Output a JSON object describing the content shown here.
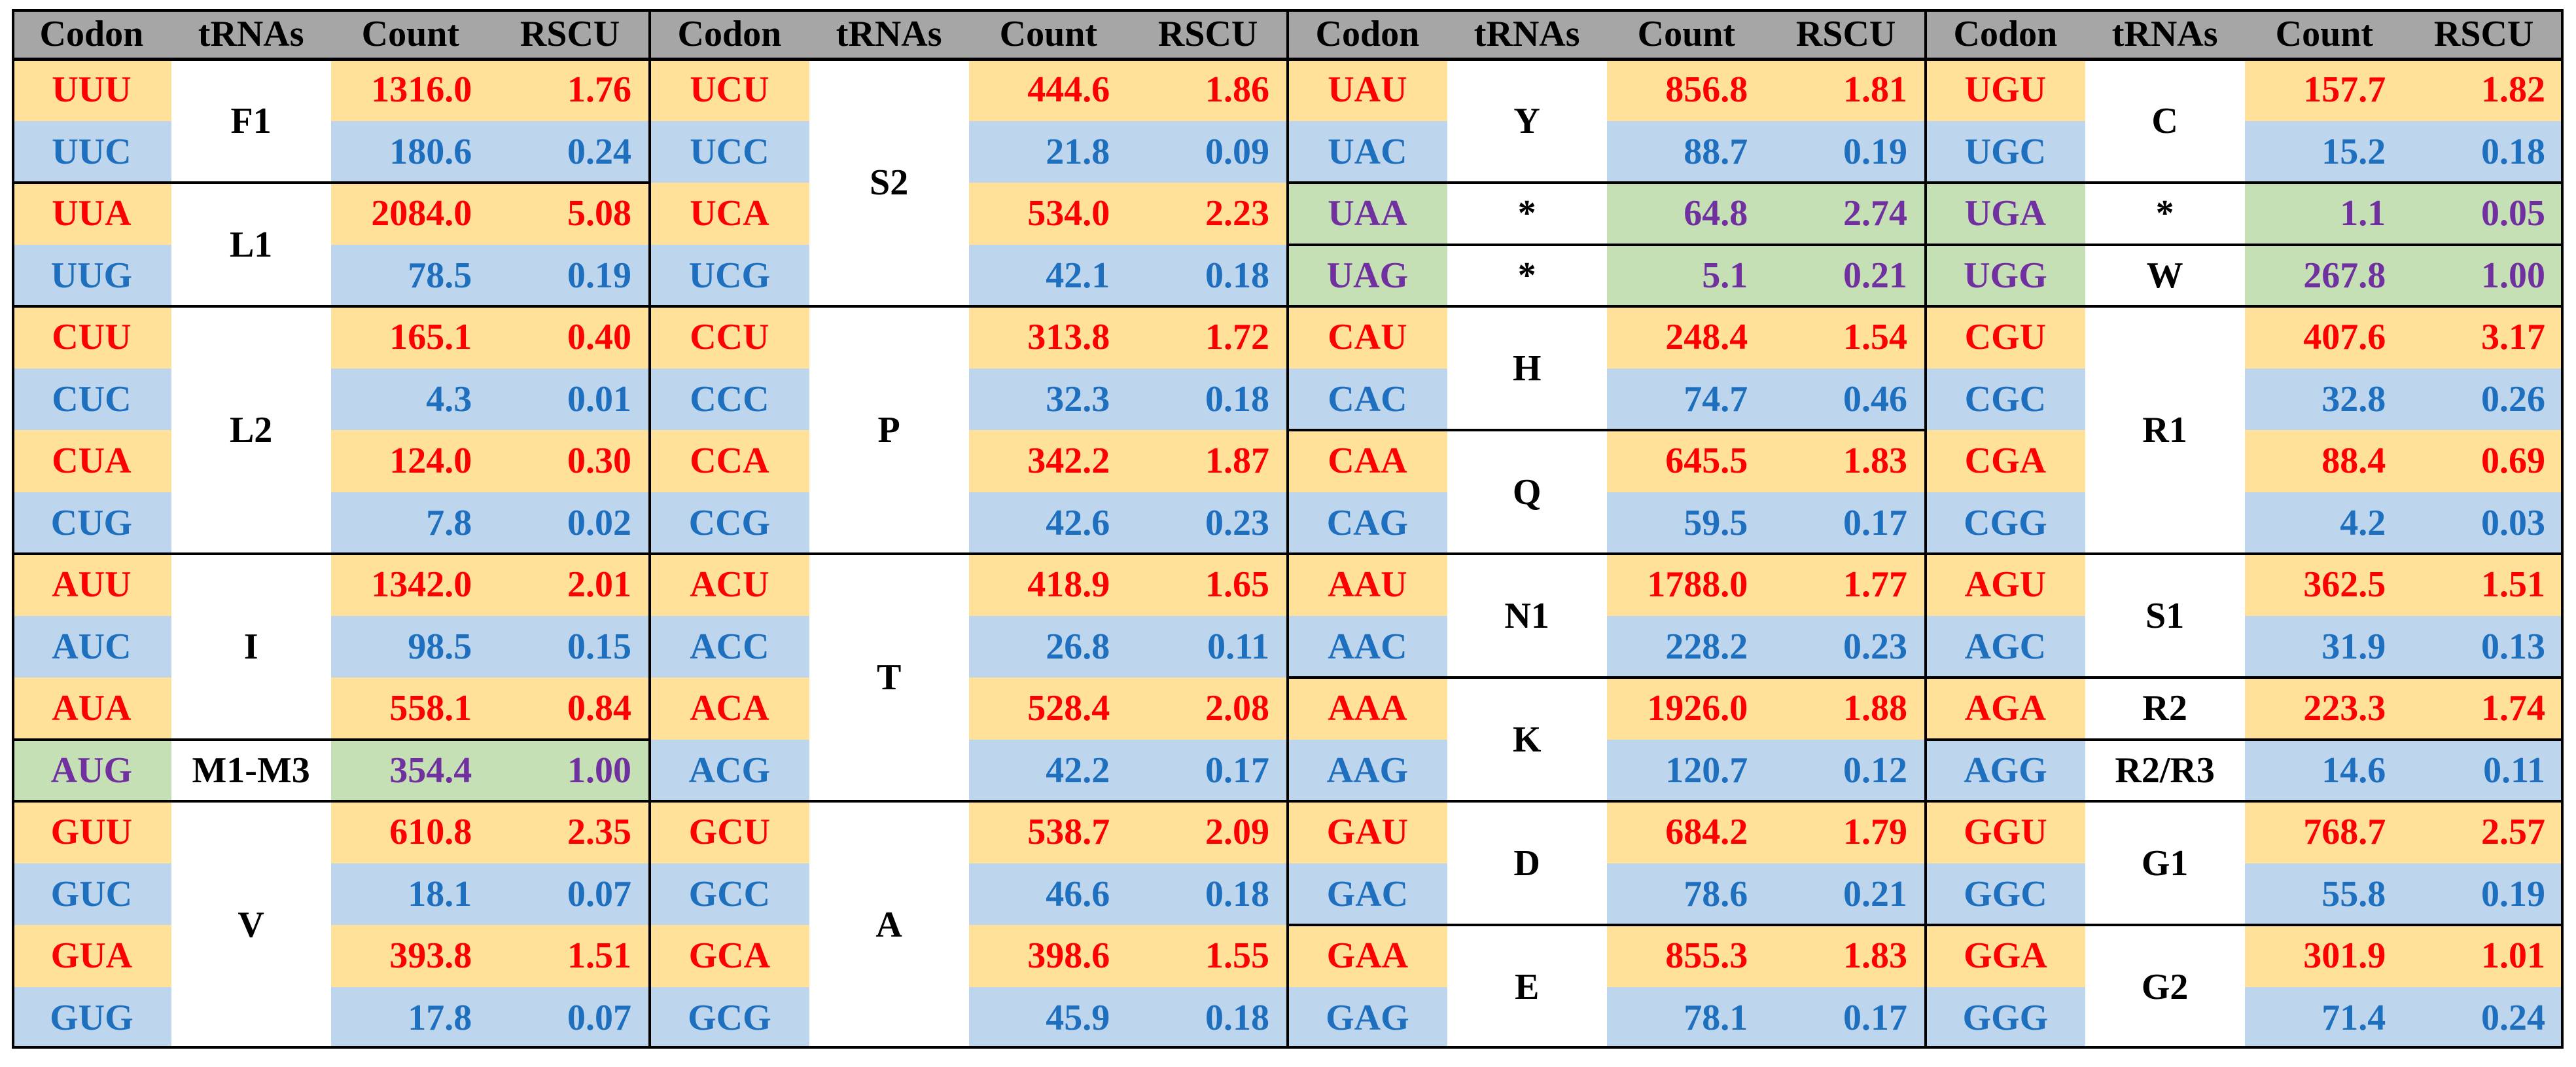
{
  "colors": {
    "header_bg": "#a6a6a6",
    "u_ending_bg": "#ffe199",
    "c_ending_bg": "#bdd6ee",
    "special_bg": "#c5e0b4",
    "u_ending_text": "#ff0000",
    "c_ending_text": "#1f6fbf",
    "special_text": "#7030a0",
    "trna_text": "#000000",
    "line": "#000000"
  },
  "headers": [
    "Codon",
    "tRNAs",
    "Count",
    "RSCU"
  ],
  "blocks": [
    {
      "rows": [
        {
          "codon": "UUU",
          "count": "1316.0",
          "rscu": "1.76",
          "kind": "u"
        },
        {
          "codon": "UUC",
          "count": "180.6",
          "rscu": "0.24",
          "kind": "c"
        },
        {
          "codon": "UUA",
          "count": "2084.0",
          "rscu": "5.08",
          "kind": "u"
        },
        {
          "codon": "UUG",
          "count": "78.5",
          "rscu": "0.19",
          "kind": "c"
        },
        {
          "codon": "CUU",
          "count": "165.1",
          "rscu": "0.40",
          "kind": "u"
        },
        {
          "codon": "CUC",
          "count": "4.3",
          "rscu": "0.01",
          "kind": "c"
        },
        {
          "codon": "CUA",
          "count": "124.0",
          "rscu": "0.30",
          "kind": "u"
        },
        {
          "codon": "CUG",
          "count": "7.8",
          "rscu": "0.02",
          "kind": "c"
        },
        {
          "codon": "AUU",
          "count": "1342.0",
          "rscu": "2.01",
          "kind": "u"
        },
        {
          "codon": "AUC",
          "count": "98.5",
          "rscu": "0.15",
          "kind": "c"
        },
        {
          "codon": "AUA",
          "count": "558.1",
          "rscu": "0.84",
          "kind": "u"
        },
        {
          "codon": "AUG",
          "count": "354.4",
          "rscu": "1.00",
          "kind": "s"
        },
        {
          "codon": "GUU",
          "count": "610.8",
          "rscu": "2.35",
          "kind": "u"
        },
        {
          "codon": "GUC",
          "count": "18.1",
          "rscu": "0.07",
          "kind": "c"
        },
        {
          "codon": "GUA",
          "count": "393.8",
          "rscu": "1.51",
          "kind": "u"
        },
        {
          "codon": "GUG",
          "count": "17.8",
          "rscu": "0.07",
          "kind": "c"
        }
      ],
      "trnas": [
        {
          "label": "F1",
          "start": 0,
          "span": 2
        },
        {
          "label": "L1",
          "start": 2,
          "span": 2
        },
        {
          "label": "L2",
          "start": 4,
          "span": 4
        },
        {
          "label": "I",
          "start": 8,
          "span": 3
        },
        {
          "label": "M1-M3",
          "start": 11,
          "span": 1
        },
        {
          "label": "V",
          "start": 12,
          "span": 4
        }
      ]
    },
    {
      "rows": [
        {
          "codon": "UCU",
          "count": "444.6",
          "rscu": "1.86",
          "kind": "u"
        },
        {
          "codon": "UCC",
          "count": "21.8",
          "rscu": "0.09",
          "kind": "c"
        },
        {
          "codon": "UCA",
          "count": "534.0",
          "rscu": "2.23",
          "kind": "u"
        },
        {
          "codon": "UCG",
          "count": "42.1",
          "rscu": "0.18",
          "kind": "c"
        },
        {
          "codon": "CCU",
          "count": "313.8",
          "rscu": "1.72",
          "kind": "u"
        },
        {
          "codon": "CCC",
          "count": "32.3",
          "rscu": "0.18",
          "kind": "c"
        },
        {
          "codon": "CCA",
          "count": "342.2",
          "rscu": "1.87",
          "kind": "u"
        },
        {
          "codon": "CCG",
          "count": "42.6",
          "rscu": "0.23",
          "kind": "c"
        },
        {
          "codon": "ACU",
          "count": "418.9",
          "rscu": "1.65",
          "kind": "u"
        },
        {
          "codon": "ACC",
          "count": "26.8",
          "rscu": "0.11",
          "kind": "c"
        },
        {
          "codon": "ACA",
          "count": "528.4",
          "rscu": "2.08",
          "kind": "u"
        },
        {
          "codon": "ACG",
          "count": "42.2",
          "rscu": "0.17",
          "kind": "c"
        },
        {
          "codon": "GCU",
          "count": "538.7",
          "rscu": "2.09",
          "kind": "u"
        },
        {
          "codon": "GCC",
          "count": "46.6",
          "rscu": "0.18",
          "kind": "c"
        },
        {
          "codon": "GCA",
          "count": "398.6",
          "rscu": "1.55",
          "kind": "u"
        },
        {
          "codon": "GCG",
          "count": "45.9",
          "rscu": "0.18",
          "kind": "c"
        }
      ],
      "trnas": [
        {
          "label": "S2",
          "start": 0,
          "span": 4
        },
        {
          "label": "P",
          "start": 4,
          "span": 4
        },
        {
          "label": "T",
          "start": 8,
          "span": 4
        },
        {
          "label": "A",
          "start": 12,
          "span": 4
        }
      ]
    },
    {
      "rows": [
        {
          "codon": "UAU",
          "count": "856.8",
          "rscu": "1.81",
          "kind": "u"
        },
        {
          "codon": "UAC",
          "count": "88.7",
          "rscu": "0.19",
          "kind": "c"
        },
        {
          "codon": "UAA",
          "count": "64.8",
          "rscu": "2.74",
          "kind": "s"
        },
        {
          "codon": "UAG",
          "count": "5.1",
          "rscu": "0.21",
          "kind": "s"
        },
        {
          "codon": "CAU",
          "count": "248.4",
          "rscu": "1.54",
          "kind": "u"
        },
        {
          "codon": "CAC",
          "count": "74.7",
          "rscu": "0.46",
          "kind": "c"
        },
        {
          "codon": "CAA",
          "count": "645.5",
          "rscu": "1.83",
          "kind": "u"
        },
        {
          "codon": "CAG",
          "count": "59.5",
          "rscu": "0.17",
          "kind": "c"
        },
        {
          "codon": "AAU",
          "count": "1788.0",
          "rscu": "1.77",
          "kind": "u"
        },
        {
          "codon": "AAC",
          "count": "228.2",
          "rscu": "0.23",
          "kind": "c"
        },
        {
          "codon": "AAA",
          "count": "1926.0",
          "rscu": "1.88",
          "kind": "u"
        },
        {
          "codon": "AAG",
          "count": "120.7",
          "rscu": "0.12",
          "kind": "c"
        },
        {
          "codon": "GAU",
          "count": "684.2",
          "rscu": "1.79",
          "kind": "u"
        },
        {
          "codon": "GAC",
          "count": "78.6",
          "rscu": "0.21",
          "kind": "c"
        },
        {
          "codon": "GAA",
          "count": "855.3",
          "rscu": "1.83",
          "kind": "u"
        },
        {
          "codon": "GAG",
          "count": "78.1",
          "rscu": "0.17",
          "kind": "c"
        }
      ],
      "trnas": [
        {
          "label": "Y",
          "start": 0,
          "span": 2
        },
        {
          "label": "*",
          "start": 2,
          "span": 1
        },
        {
          "label": "*",
          "start": 3,
          "span": 1
        },
        {
          "label": "H",
          "start": 4,
          "span": 2
        },
        {
          "label": "Q",
          "start": 6,
          "span": 2
        },
        {
          "label": "N1",
          "start": 8,
          "span": 2
        },
        {
          "label": "K",
          "start": 10,
          "span": 2
        },
        {
          "label": "D",
          "start": 12,
          "span": 2
        },
        {
          "label": "E",
          "start": 14,
          "span": 2
        }
      ]
    },
    {
      "rows": [
        {
          "codon": "UGU",
          "count": "157.7",
          "rscu": "1.82",
          "kind": "u"
        },
        {
          "codon": "UGC",
          "count": "15.2",
          "rscu": "0.18",
          "kind": "c"
        },
        {
          "codon": "UGA",
          "count": "1.1",
          "rscu": "0.05",
          "kind": "s"
        },
        {
          "codon": "UGG",
          "count": "267.8",
          "rscu": "1.00",
          "kind": "s"
        },
        {
          "codon": "CGU",
          "count": "407.6",
          "rscu": "3.17",
          "kind": "u"
        },
        {
          "codon": "CGC",
          "count": "32.8",
          "rscu": "0.26",
          "kind": "c"
        },
        {
          "codon": "CGA",
          "count": "88.4",
          "rscu": "0.69",
          "kind": "u"
        },
        {
          "codon": "CGG",
          "count": "4.2",
          "rscu": "0.03",
          "kind": "c"
        },
        {
          "codon": "AGU",
          "count": "362.5",
          "rscu": "1.51",
          "kind": "u"
        },
        {
          "codon": "AGC",
          "count": "31.9",
          "rscu": "0.13",
          "kind": "c"
        },
        {
          "codon": "AGA",
          "count": "223.3",
          "rscu": "1.74",
          "kind": "u"
        },
        {
          "codon": "AGG",
          "count": "14.6",
          "rscu": "0.11",
          "kind": "c"
        },
        {
          "codon": "GGU",
          "count": "768.7",
          "rscu": "2.57",
          "kind": "u"
        },
        {
          "codon": "GGC",
          "count": "55.8",
          "rscu": "0.19",
          "kind": "c"
        },
        {
          "codon": "GGA",
          "count": "301.9",
          "rscu": "1.01",
          "kind": "u"
        },
        {
          "codon": "GGG",
          "count": "71.4",
          "rscu": "0.24",
          "kind": "c"
        }
      ],
      "trnas": [
        {
          "label": "C",
          "start": 0,
          "span": 2
        },
        {
          "label": "*",
          "start": 2,
          "span": 1
        },
        {
          "label": "W",
          "start": 3,
          "span": 1
        },
        {
          "label": "R1",
          "start": 4,
          "span": 4
        },
        {
          "label": "S1",
          "start": 8,
          "span": 2
        },
        {
          "label": "R2",
          "start": 10,
          "span": 1
        },
        {
          "label": "R2/R3",
          "start": 11,
          "span": 1
        },
        {
          "label": "G1",
          "start": 12,
          "span": 2
        },
        {
          "label": "G2",
          "start": 14,
          "span": 2
        }
      ]
    }
  ]
}
